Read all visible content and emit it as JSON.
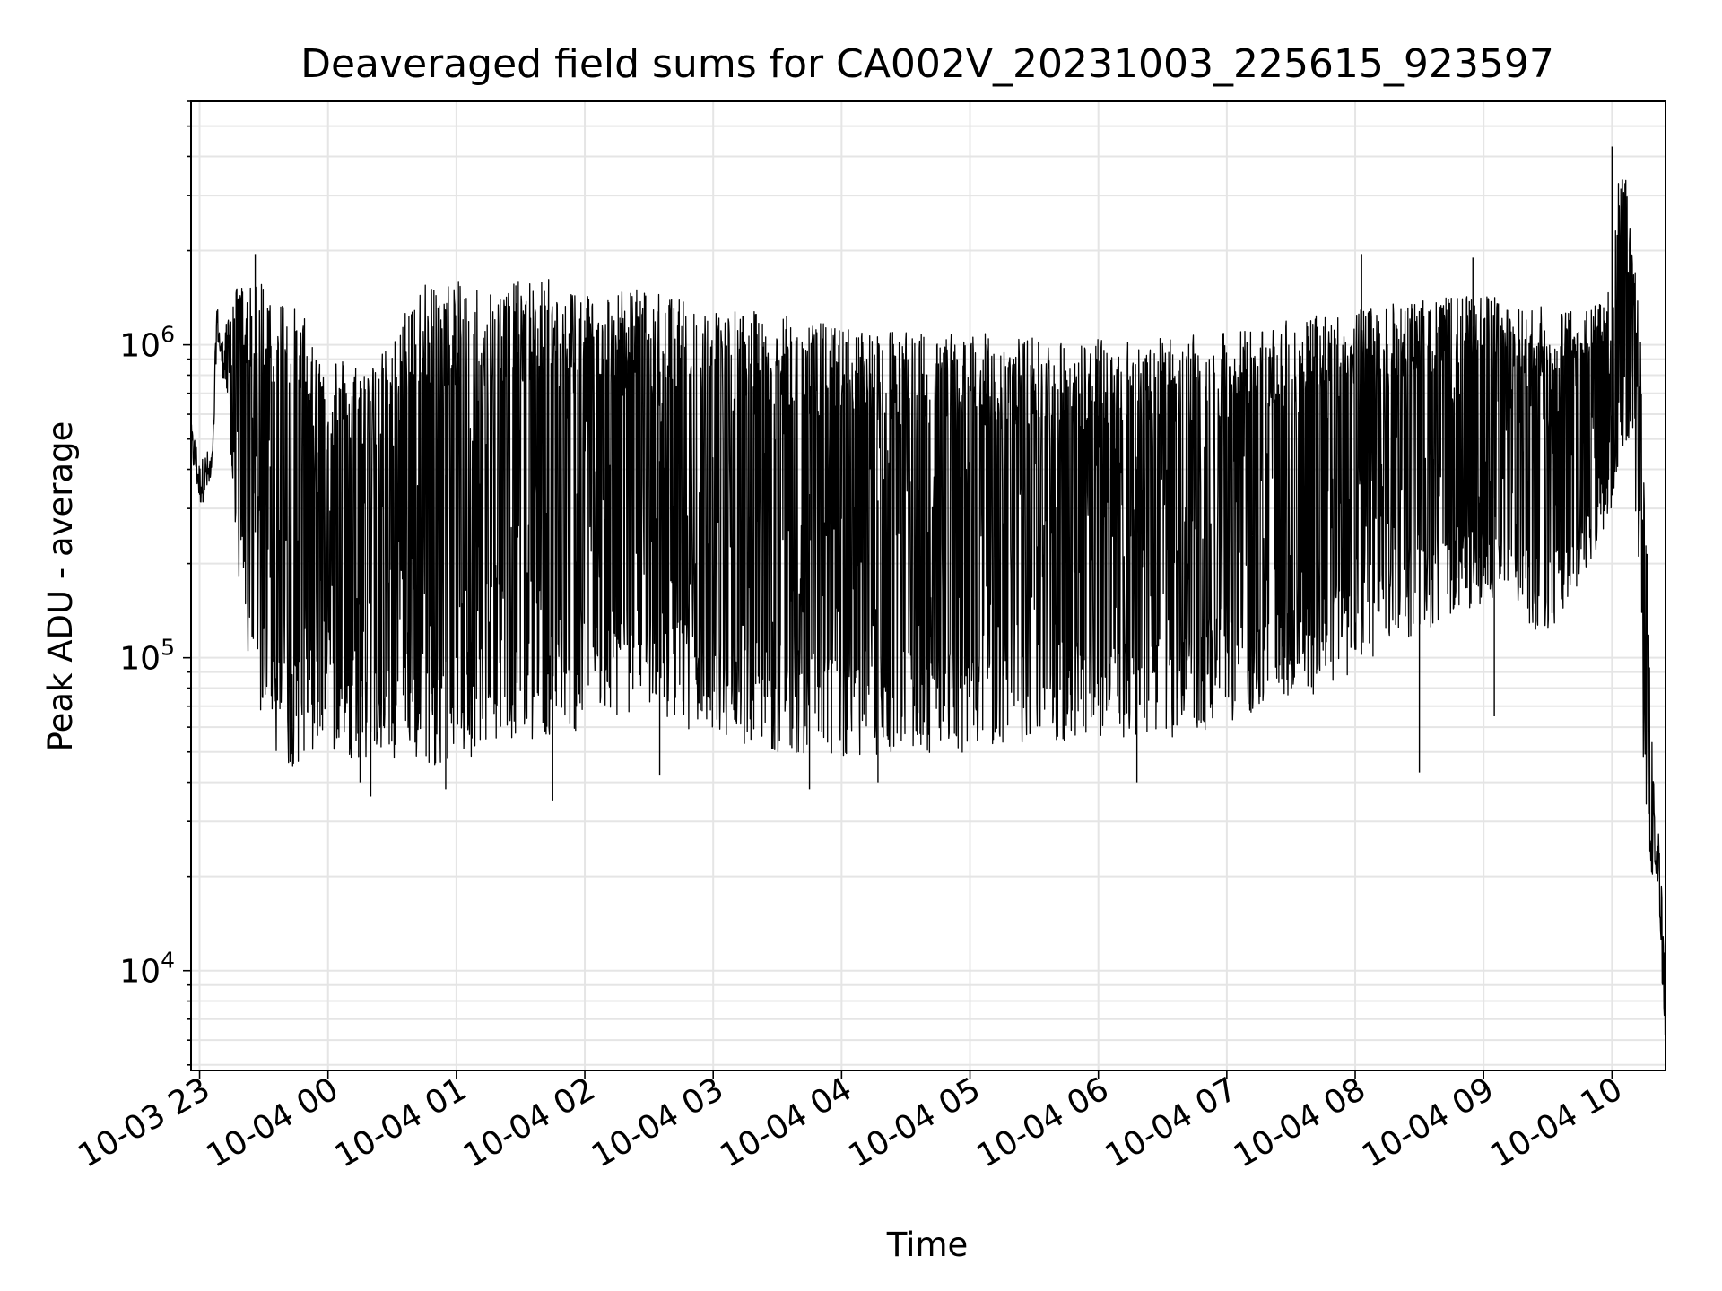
{
  "chart_data": {
    "type": "line",
    "title": "Deaveraged field sums for CA002V_20231003_225615_923597",
    "xlabel": "Time",
    "ylabel": "Peak ADU - average",
    "yscale": "log",
    "ylim": [
      4800,
      6000000
    ],
    "xlim": [
      "2023-10-03 22:56",
      "2023-10-04 10:25"
    ],
    "grid": true,
    "line_color": "#000000",
    "grid_color": "#e5e5e5",
    "x_ticks": [
      {
        "value": "2023-10-03 23:00",
        "label": "10-03 23"
      },
      {
        "value": "2023-10-04 00:00",
        "label": "10-04 00"
      },
      {
        "value": "2023-10-04 01:00",
        "label": "10-04 01"
      },
      {
        "value": "2023-10-04 02:00",
        "label": "10-04 02"
      },
      {
        "value": "2023-10-04 03:00",
        "label": "10-04 03"
      },
      {
        "value": "2023-10-04 04:00",
        "label": "10-04 04"
      },
      {
        "value": "2023-10-04 05:00",
        "label": "10-04 05"
      },
      {
        "value": "2023-10-04 06:00",
        "label": "10-04 06"
      },
      {
        "value": "2023-10-04 07:00",
        "label": "10-04 07"
      },
      {
        "value": "2023-10-04 08:00",
        "label": "10-04 08"
      },
      {
        "value": "2023-10-04 09:00",
        "label": "10-04 09"
      },
      {
        "value": "2023-10-04 10:00",
        "label": "10-04 10"
      }
    ],
    "y_ticks": [
      {
        "value": 10000,
        "base": "10",
        "exp": "4"
      },
      {
        "value": 100000,
        "base": "10",
        "exp": "5"
      },
      {
        "value": 1000000,
        "base": "10",
        "exp": "6"
      }
    ],
    "series": [
      {
        "x": [
          "2023-10-03 22:56",
          "2023-10-03 22:58",
          "2023-10-03 23:00",
          "2023-10-03 23:03",
          "2023-10-03 23:06",
          "2023-10-03 23:08",
          "2023-10-03 23:10",
          "2023-10-03 23:13",
          "2023-10-03 23:16",
          "2023-10-03 23:20",
          "2023-10-03 23:25",
          "2023-10-03 23:30",
          "2023-10-03 23:35",
          "2023-10-03 23:40",
          "2023-10-03 23:45",
          "2023-10-03 23:50",
          "2023-10-03 23:55",
          "2023-10-04 00:00",
          "2023-10-04 00:10",
          "2023-10-04 00:20",
          "2023-10-04 00:30",
          "2023-10-04 00:40",
          "2023-10-04 00:50",
          "2023-10-04 01:00",
          "2023-10-04 01:10",
          "2023-10-04 01:20",
          "2023-10-04 01:30",
          "2023-10-04 01:40",
          "2023-10-04 01:50",
          "2023-10-04 02:00",
          "2023-10-04 02:15",
          "2023-10-04 02:30",
          "2023-10-04 02:45",
          "2023-10-04 03:00",
          "2023-10-04 03:30",
          "2023-10-04 04:00",
          "2023-10-04 04:30",
          "2023-10-04 05:00",
          "2023-10-04 05:30",
          "2023-10-04 06:00",
          "2023-10-04 06:30",
          "2023-10-04 07:00",
          "2023-10-04 07:30",
          "2023-10-04 08:00",
          "2023-10-04 08:30",
          "2023-10-04 09:00",
          "2023-10-04 09:10",
          "2023-10-04 09:15",
          "2023-10-04 09:20",
          "2023-10-04 09:25",
          "2023-10-04 09:30",
          "2023-10-04 09:40",
          "2023-10-04 09:50",
          "2023-10-04 10:00",
          "2023-10-04 10:04",
          "2023-10-04 10:08",
          "2023-10-04 10:10",
          "2023-10-04 10:12",
          "2023-10-04 10:14",
          "2023-10-04 10:16",
          "2023-10-04 10:18",
          "2023-10-04 10:20",
          "2023-10-04 10:22",
          "2023-10-04 10:24",
          "2023-10-04 10:25"
        ],
        "upper": [
          600000,
          550000,
          450000,
          500000,
          500000,
          1500000,
          1100000,
          1200000,
          1500000,
          1600000,
          1500000,
          1700000,
          1500000,
          1500000,
          1300000,
          1200000,
          1000000,
          1000000,
          900000,
          900000,
          1000000,
          1600000,
          1600000,
          1600000,
          1600000,
          1600000,
          1600000,
          1650000,
          1600000,
          1550000,
          1500000,
          1500000,
          1400000,
          1350000,
          1250000,
          1150000,
          1100000,
          1100000,
          1050000,
          1050000,
          1050000,
          1100000,
          1200000,
          1300000,
          1400000,
          1450000,
          1450000,
          1300000,
          1300000,
          1350000,
          1300000,
          1300000,
          1400000,
          1600000,
          4300000,
          3000000,
          2000000,
          1400000,
          1000000,
          300000,
          100000,
          30000,
          30000,
          13000,
          12000
        ],
        "lower": [
          380000,
          350000,
          280000,
          300000,
          280000,
          1000000,
          800000,
          600000,
          300000,
          120000,
          80000,
          60000,
          50000,
          45000,
          45000,
          48000,
          50000,
          50000,
          48000,
          45000,
          45000,
          45000,
          45000,
          45000,
          50000,
          55000,
          55000,
          55000,
          55000,
          60000,
          65000,
          70000,
          60000,
          55000,
          50000,
          48000,
          48000,
          50000,
          52000,
          55000,
          55000,
          60000,
          70000,
          90000,
          120000,
          150000,
          150000,
          140000,
          130000,
          120000,
          120000,
          150000,
          200000,
          300000,
          450000,
          500000,
          400000,
          200000,
          60000,
          30000,
          20000,
          18000,
          17000,
          7000,
          6000
        ],
        "spikes": [
          {
            "x": "2023-10-03 23:26",
            "y": 1950000
          },
          {
            "x": "2023-10-03 23:33",
            "y": 180000
          },
          {
            "x": "2023-10-04 00:15",
            "y": 40000
          },
          {
            "x": "2023-10-04 00:20",
            "y": 36000
          },
          {
            "x": "2023-10-04 00:55",
            "y": 38000
          },
          {
            "x": "2023-10-04 01:45",
            "y": 35000
          },
          {
            "x": "2023-10-04 02:35",
            "y": 42000
          },
          {
            "x": "2023-10-04 03:45",
            "y": 38000
          },
          {
            "x": "2023-10-04 04:17",
            "y": 40000
          },
          {
            "x": "2023-10-04 06:18",
            "y": 40000
          },
          {
            "x": "2023-10-04 08:03",
            "y": 1950000
          },
          {
            "x": "2023-10-04 08:30",
            "y": 43000
          },
          {
            "x": "2023-10-04 08:55",
            "y": 1900000
          },
          {
            "x": "2023-10-04 09:05",
            "y": 65000
          },
          {
            "x": "2023-10-04 10:00",
            "y": 4300000
          }
        ]
      }
    ]
  }
}
